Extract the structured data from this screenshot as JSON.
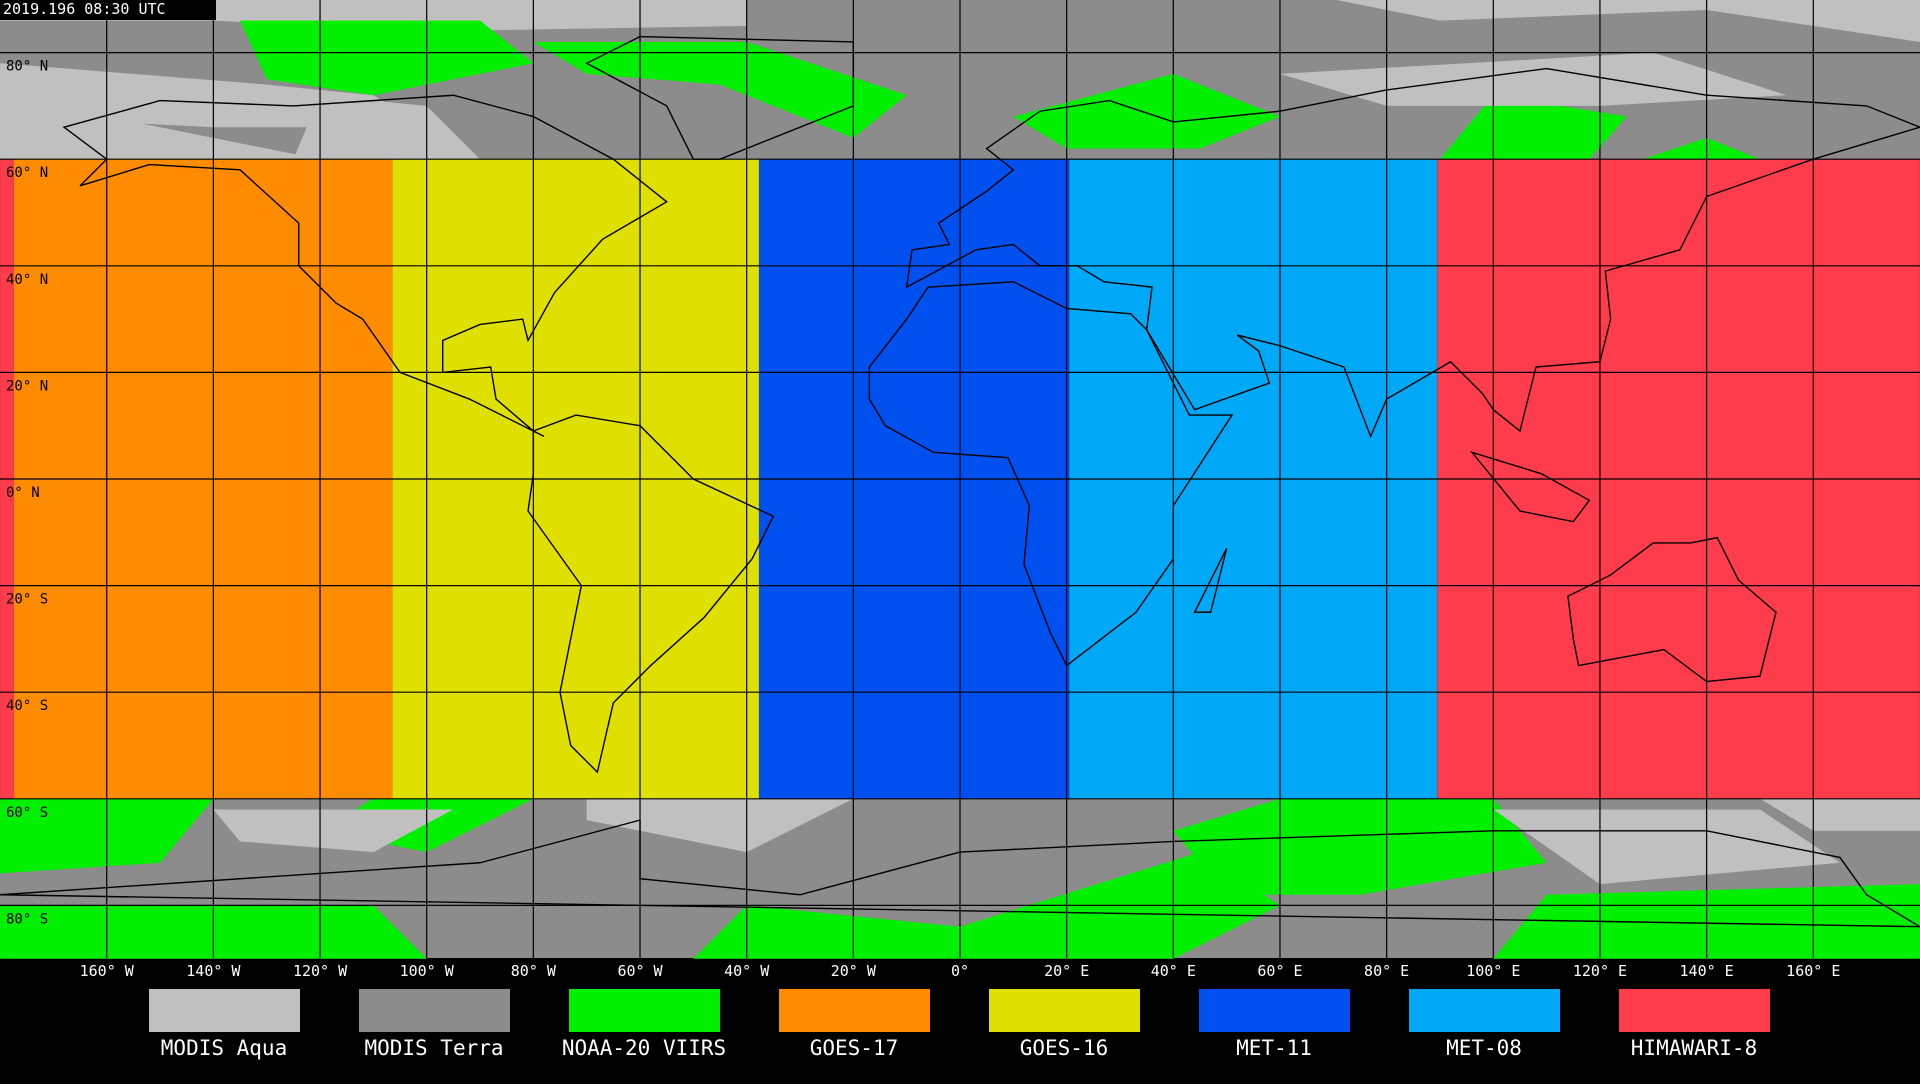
{
  "timestamp": "2019.196 08:30 UTC",
  "latitude_labels": [
    "80° N",
    "60° N",
    "40° N",
    "20° N",
    "0° N",
    "20° S",
    "40° S",
    "60° S",
    "80° S"
  ],
  "longitude_labels": [
    "160° W",
    "140° W",
    "120° W",
    "100° W",
    "80° W",
    "60° W",
    "40° W",
    "20° W",
    "0°",
    "20° E",
    "40° E",
    "60° E",
    "80° E",
    "100° E",
    "120° E",
    "140° E",
    "160° E"
  ],
  "legend": [
    {
      "label": "MODIS Aqua",
      "color": "#c0c0c0"
    },
    {
      "label": "MODIS Terra",
      "color": "#8c8c8c"
    },
    {
      "label": "NOAA-20 VIIRS",
      "color": "#00f000"
    },
    {
      "label": "GOES-17",
      "color": "#ff8c00"
    },
    {
      "label": "GOES-16",
      "color": "#e0e000"
    },
    {
      "label": "MET-11",
      "color": "#0050f0"
    },
    {
      "label": "MET-08",
      "color": "#00a8f8"
    },
    {
      "label": "HIMAWARI-8",
      "color": "#ff3c4c"
    }
  ]
}
